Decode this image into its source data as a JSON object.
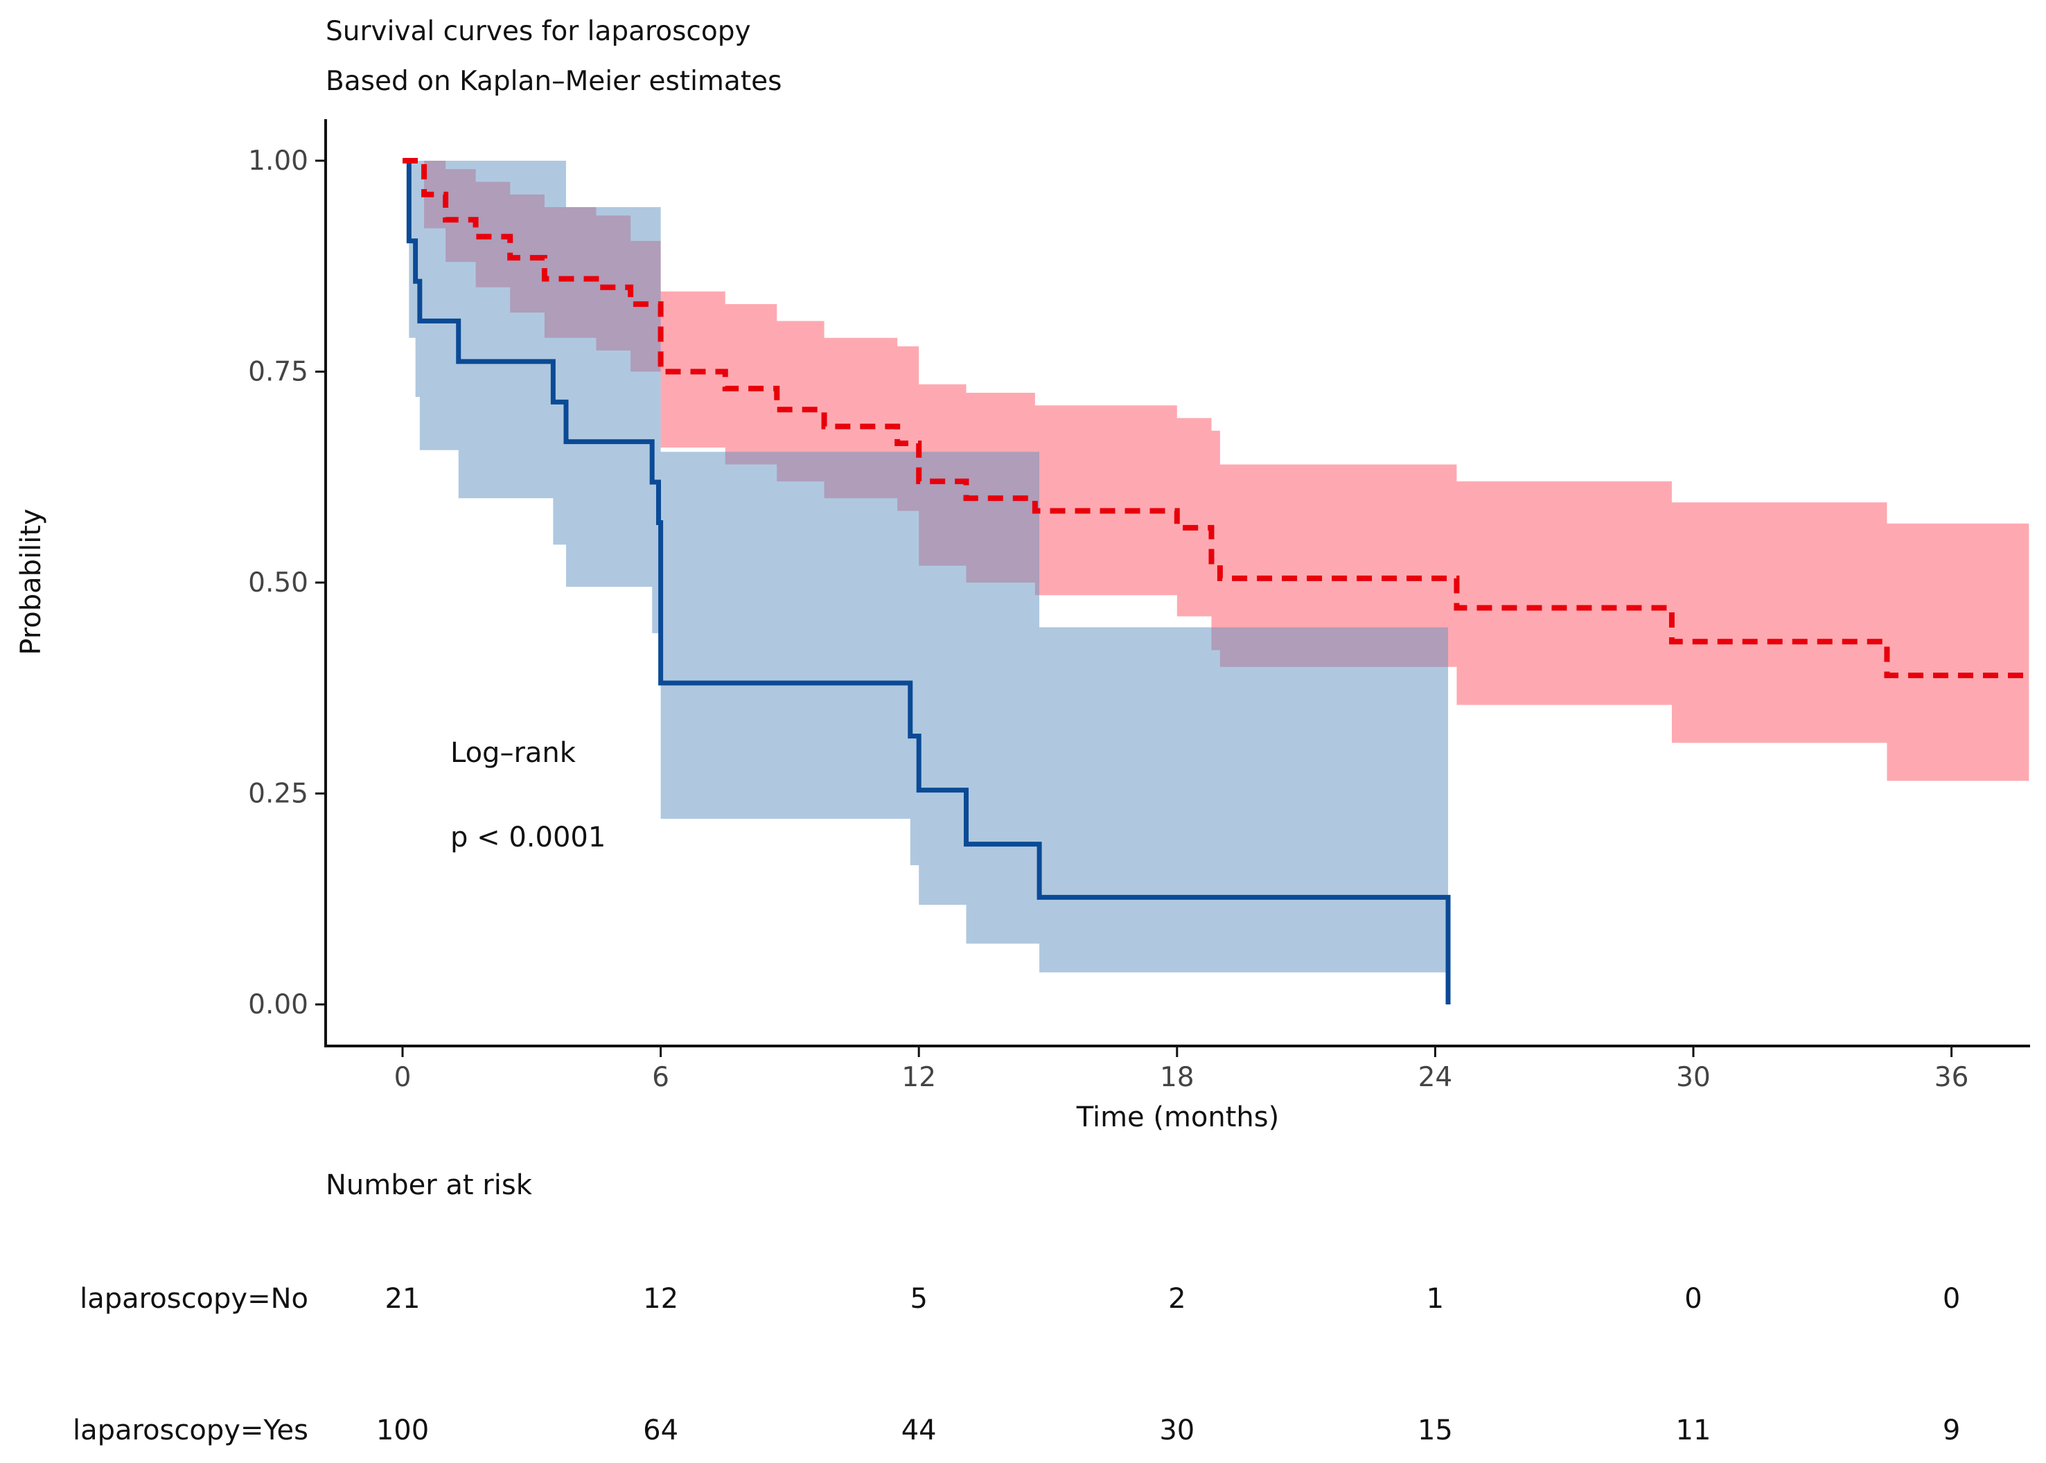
{
  "chart_data": {
    "type": "line",
    "subtype": "kaplan-meier",
    "title": "Survival curves for laparoscopy",
    "subtitle": "Based on Kaplan–Meier estimates",
    "xlabel": "Time (months)",
    "ylabel": "Probability",
    "xlim": [
      -2,
      38
    ],
    "ylim": [
      0,
      1
    ],
    "xticks": [
      0,
      6,
      12,
      18,
      24,
      30,
      36
    ],
    "xtick_labels": [
      "0",
      "6",
      "12",
      "18",
      "24",
      "30",
      "36"
    ],
    "yticks": [
      0,
      0.25,
      0.5,
      0.75,
      1.0
    ],
    "ytick_labels": [
      "0.00",
      "0.25",
      "0.50",
      "0.75",
      "1.00"
    ],
    "grid": false,
    "annotation": {
      "line1": "Log–rank",
      "line2": "p < 0.0001"
    },
    "colors": {
      "No": "#0b4a95",
      "Yes": "#e8000b",
      "No_band": "#adc8e0",
      "Yes_band": "#fe9aa3",
      "overlap_band": "#cc8a9e"
    },
    "series": [
      {
        "name": "laparoscopy=No",
        "style": "solid",
        "x": [
          0,
          0.15,
          0.3,
          0.4,
          1.3,
          3.5,
          3.8,
          5.8,
          5.95,
          6.0,
          11.8,
          12.0,
          13.1,
          14.8,
          24.3
        ],
        "y": [
          1.0,
          0.905,
          0.857,
          0.81,
          0.762,
          0.714,
          0.667,
          0.619,
          0.571,
          0.381,
          0.318,
          0.254,
          0.19,
          0.127,
          0.0
        ],
        "lower": [
          1.0,
          0.79,
          0.72,
          0.657,
          0.6,
          0.545,
          0.495,
          0.44,
          0.44,
          0.22,
          0.165,
          0.118,
          0.072,
          0.038,
          0.038
        ],
        "upper": [
          1.0,
          1.0,
          1.0,
          1.0,
          1.0,
          1.0,
          0.945,
          0.945,
          0.945,
          0.655,
          0.655,
          0.655,
          0.655,
          0.447,
          0.447
        ],
        "end_x": 24.3
      },
      {
        "name": "laparoscopy=Yes",
        "style": "dashed",
        "x": [
          0,
          0.5,
          1.0,
          1.7,
          2.5,
          3.3,
          4.5,
          5.3,
          6.0,
          7.5,
          8.7,
          9.8,
          11.5,
          12.0,
          13.1,
          14.7,
          18.0,
          18.8,
          19.0,
          24.5,
          29.5,
          34.5
        ],
        "y": [
          1.0,
          0.96,
          0.93,
          0.91,
          0.885,
          0.86,
          0.85,
          0.83,
          0.75,
          0.73,
          0.705,
          0.685,
          0.665,
          0.62,
          0.6,
          0.585,
          0.565,
          0.525,
          0.505,
          0.47,
          0.43,
          0.39
        ],
        "lower": [
          1.0,
          0.92,
          0.88,
          0.85,
          0.82,
          0.79,
          0.775,
          0.75,
          0.66,
          0.64,
          0.62,
          0.6,
          0.585,
          0.52,
          0.5,
          0.485,
          0.46,
          0.42,
          0.4,
          0.355,
          0.31,
          0.265
        ],
        "upper": [
          1.0,
          1.0,
          0.99,
          0.975,
          0.96,
          0.945,
          0.935,
          0.905,
          0.845,
          0.83,
          0.81,
          0.79,
          0.78,
          0.735,
          0.725,
          0.71,
          0.695,
          0.68,
          0.64,
          0.62,
          0.595,
          0.57
        ],
        "end_x": 37.8
      }
    ]
  },
  "risk_table": {
    "title": "Number at risk",
    "times": [
      0,
      6,
      12,
      18,
      24,
      30,
      36
    ],
    "rows": [
      {
        "label": "laparoscopy=No",
        "color": "#1c4e94",
        "values": [
          "21",
          "12",
          "5",
          "2",
          "1",
          "0",
          "0"
        ]
      },
      {
        "label": "laparoscopy=Yes",
        "color": "#e8000b",
        "values": [
          "100",
          "64",
          "44",
          "30",
          "15",
          "11",
          "9"
        ]
      }
    ]
  }
}
